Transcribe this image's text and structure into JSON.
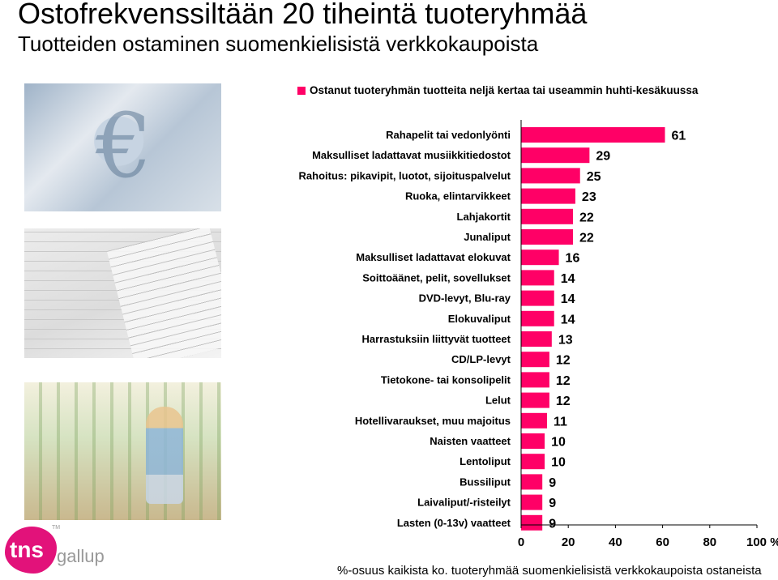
{
  "header": {
    "title": "Ostofrekvenssiltään 20 tiheintä tuoteryhmää",
    "subtitle": "Tuotteiden ostaminen suomenkielisistä verkkokaupoista"
  },
  "footnote": "%-osuus kaikista ko. tuoteryhmää suomenkielisistä verkkokaupoista ostaneista",
  "logo": {
    "wordmark": "tns",
    "brand": "gallup",
    "trademark": "TM"
  },
  "decor": {
    "currency_symbol": "€"
  },
  "colors": {
    "bar": "#ff0066",
    "axis": "#000000",
    "logo": "#e2127a"
  },
  "chart_data": {
    "type": "bar",
    "orientation": "horizontal",
    "categories": [
      "Rahapelit tai vedonlyönti",
      "Maksulliset ladattavat musiikkitiedostot",
      "Rahoitus: pikavipit, luotot, sijoituspalvelut",
      "Ruoka, elintarvikkeet",
      "Lahjakortit",
      "Junaliput",
      "Maksulliset ladattavat elokuvat",
      "Soittoäänet, pelit, sovellukset",
      "DVD-levyt, Blu-ray",
      "Elokuvaliput",
      "Harrastuksiin liittyvät tuotteet",
      "CD/LP-levyt",
      "Tietokone- tai konsolipelit",
      "Lelut",
      "Hotellivaraukset, muu majoitus",
      "Naisten vaatteet",
      "Lentoliput",
      "Bussiliput",
      "Laivaliput/-risteilyt",
      "Lasten (0-13v) vaatteet"
    ],
    "series": [
      {
        "name": "Ostanut tuoteryhmän tuotteita neljä kertaa tai useammin huhti-kesäkuussa",
        "values": [
          61,
          29,
          25,
          23,
          22,
          22,
          16,
          14,
          14,
          14,
          13,
          12,
          12,
          12,
          11,
          10,
          10,
          9,
          9,
          9
        ]
      }
    ],
    "xlim": [
      0,
      100
    ],
    "xticks": [
      "0",
      "20",
      "40",
      "60",
      "80",
      "100 %"
    ],
    "legend_position": "top",
    "grid": false
  }
}
